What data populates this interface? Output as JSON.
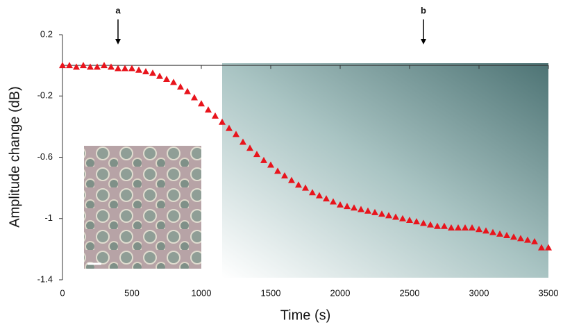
{
  "chart_data": {
    "type": "scatter",
    "x_label": "Time (s)",
    "y_label": "Amplitude change (dB)",
    "annotations": [
      {
        "text": "a",
        "x": 400
      },
      {
        "text": "b",
        "x": 2600
      }
    ],
    "series": [
      {
        "color": "#e8141c",
        "x": [
          0,
          50,
          100,
          150,
          200,
          250,
          300,
          350,
          400,
          450,
          500,
          550,
          600,
          650,
          700,
          750,
          800,
          850,
          900,
          950,
          1000,
          1050,
          1100,
          1150,
          1200,
          1250,
          1300,
          1350,
          1400,
          1450,
          1500,
          1550,
          1600,
          1650,
          1700,
          1750,
          1800,
          1850,
          1900,
          1950,
          2000,
          2050,
          2100,
          2150,
          2200,
          2250,
          2300,
          2350,
          2400,
          2450,
          2500,
          2550,
          2600,
          2650,
          2700,
          2750,
          2800,
          2850,
          2900,
          2950,
          3000,
          3050,
          3100,
          3150,
          3200,
          3250,
          3300,
          3350,
          3400,
          3450,
          3500
        ],
        "values": [
          0,
          0,
          -0.01,
          0,
          -0.01,
          -0.01,
          0,
          -0.01,
          -0.02,
          -0.02,
          -0.02,
          -0.03,
          -0.04,
          -0.05,
          -0.07,
          -0.09,
          -0.11,
          -0.14,
          -0.17,
          -0.21,
          -0.25,
          -0.29,
          -0.33,
          -0.37,
          -0.41,
          -0.45,
          -0.5,
          -0.54,
          -0.58,
          -0.62,
          -0.65,
          -0.69,
          -0.72,
          -0.75,
          -0.78,
          -0.8,
          -0.83,
          -0.85,
          -0.87,
          -0.89,
          -0.91,
          -0.92,
          -0.93,
          -0.94,
          -0.95,
          -0.96,
          -0.97,
          -0.98,
          -0.99,
          -1.0,
          -1.01,
          -1.02,
          -1.03,
          -1.04,
          -1.05,
          -1.05,
          -1.06,
          -1.06,
          -1.06,
          -1.06,
          -1.07,
          -1.08,
          -1.09,
          -1.1,
          -1.11,
          -1.12,
          -1.13,
          -1.14,
          -1.15,
          -1.19,
          -1.19
        ]
      }
    ],
    "xlim": [
      0,
      3500
    ],
    "xticks": [
      0,
      500,
      1000,
      1500,
      2000,
      2500,
      3000,
      3500
    ],
    "ylim": [
      -1.4,
      0.2
    ],
    "yticks": [
      0.2,
      -0.2,
      -0.6,
      -1,
      -1.4
    ]
  }
}
